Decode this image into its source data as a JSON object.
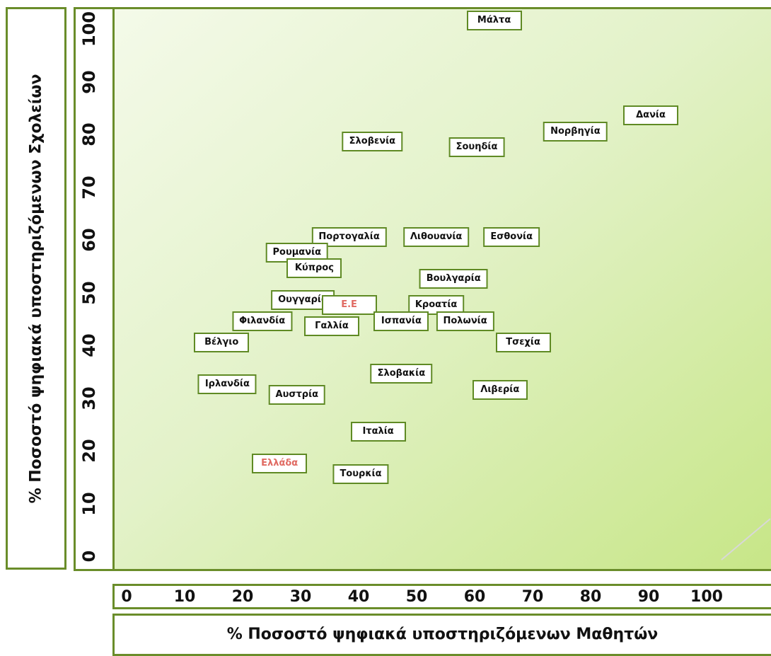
{
  "chart_data": {
    "type": "scatter",
    "title": "",
    "xlabel": "% Ποσοστό ψηφιακά υποστηριζόμενων Μαθητών",
    "ylabel": "% Ποσοστό ψηφιακά υποστηριζόμενων Σχολείων",
    "xlim": [
      0,
      100
    ],
    "ylim": [
      0,
      100
    ],
    "x_ticks": [
      "0",
      "10",
      "20",
      "30",
      "40",
      "50",
      "60",
      "70",
      "80",
      "90",
      "100"
    ],
    "y_ticks": [
      "0",
      "10",
      "20",
      "30",
      "40",
      "50",
      "60",
      "70",
      "80",
      "90",
      "100"
    ],
    "grid": false,
    "points": [
      {
        "label": "Μάλτα",
        "x": 63,
        "y": 102
      },
      {
        "label": "Δανία",
        "x": 90,
        "y": 84
      },
      {
        "label": "Νορβηγία",
        "x": 77,
        "y": 81
      },
      {
        "label": "Σλοβενία",
        "x": 42,
        "y": 79
      },
      {
        "label": "Σουηδία",
        "x": 60,
        "y": 78
      },
      {
        "label": "Πορτογαλία",
        "x": 38,
        "y": 61
      },
      {
        "label": "Λιθουανία",
        "x": 53,
        "y": 61
      },
      {
        "label": "Εσθονία",
        "x": 66,
        "y": 61
      },
      {
        "label": "Ρουμανία",
        "x": 29,
        "y": 58
      },
      {
        "label": "Κύπρος",
        "x": 32,
        "y": 55
      },
      {
        "label": "Βουλγαρία",
        "x": 56,
        "y": 53
      },
      {
        "label": "Ουγγαρία",
        "x": 30,
        "y": 49
      },
      {
        "label": "Ε.Ε",
        "x": 38,
        "y": 48,
        "highlight": true
      },
      {
        "label": "Κροατία",
        "x": 53,
        "y": 48
      },
      {
        "label": "Φιλανδία",
        "x": 23,
        "y": 45
      },
      {
        "label": "Γαλλία",
        "x": 35,
        "y": 44
      },
      {
        "label": "Ισπανία",
        "x": 47,
        "y": 45
      },
      {
        "label": "Πολωνία",
        "x": 58,
        "y": 45
      },
      {
        "label": "Βέλγιο",
        "x": 16,
        "y": 41
      },
      {
        "label": "Τσεχία",
        "x": 68,
        "y": 41
      },
      {
        "label": "Σλοβακία",
        "x": 47,
        "y": 35
      },
      {
        "label": "Ιρλανδία",
        "x": 17,
        "y": 33
      },
      {
        "label": "Αυστρία",
        "x": 29,
        "y": 31
      },
      {
        "label": "Λιβερία",
        "x": 64,
        "y": 32
      },
      {
        "label": "Ιταλία",
        "x": 43,
        "y": 24
      },
      {
        "label": "Ελλάδα",
        "x": 26,
        "y": 18,
        "highlight": true
      },
      {
        "label": "Τουρκία",
        "x": 40,
        "y": 16
      }
    ]
  },
  "colors": {
    "frame": "#6a8d2a",
    "label_border": "#5f8a24",
    "highlight_text": "#e06a62",
    "plot_light": "#f4fae9",
    "plot_dark": "#c7e687"
  }
}
